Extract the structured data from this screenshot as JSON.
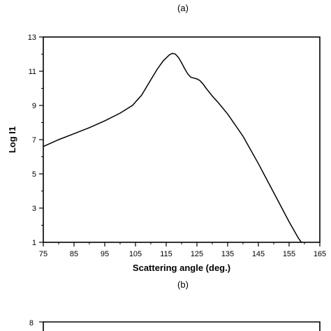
{
  "panel_a_label": "(a)",
  "panel_b_label": "(b)",
  "panel_b_top_tick": "8",
  "chart_data": {
    "type": "line",
    "title": "",
    "xlabel": "Scattering angle (deg.)",
    "ylabel": "Log I1",
    "xlim": [
      75,
      165
    ],
    "ylim": [
      1,
      13
    ],
    "xticks": [
      75,
      85,
      95,
      105,
      115,
      125,
      135,
      145,
      155,
      165
    ],
    "yticks": [
      1,
      3,
      5,
      7,
      9,
      11,
      13
    ],
    "grid": false,
    "series": [
      {
        "x": [
          75,
          80,
          85,
          90,
          95,
          100,
          104,
          107,
          110,
          112,
          114,
          116,
          117,
          118,
          119,
          120,
          121,
          122,
          123,
          124,
          125,
          126,
          127,
          128,
          130,
          132,
          135,
          140,
          145,
          150,
          155,
          158,
          159
        ],
        "y": [
          6.6,
          7.0,
          7.35,
          7.7,
          8.1,
          8.55,
          9.0,
          9.6,
          10.5,
          11.1,
          11.6,
          11.95,
          12.05,
          12.0,
          11.8,
          11.5,
          11.15,
          10.85,
          10.65,
          10.6,
          10.55,
          10.45,
          10.25,
          10.0,
          9.55,
          9.15,
          8.5,
          7.2,
          5.6,
          3.9,
          2.2,
          1.25,
          1.0
        ]
      }
    ]
  }
}
